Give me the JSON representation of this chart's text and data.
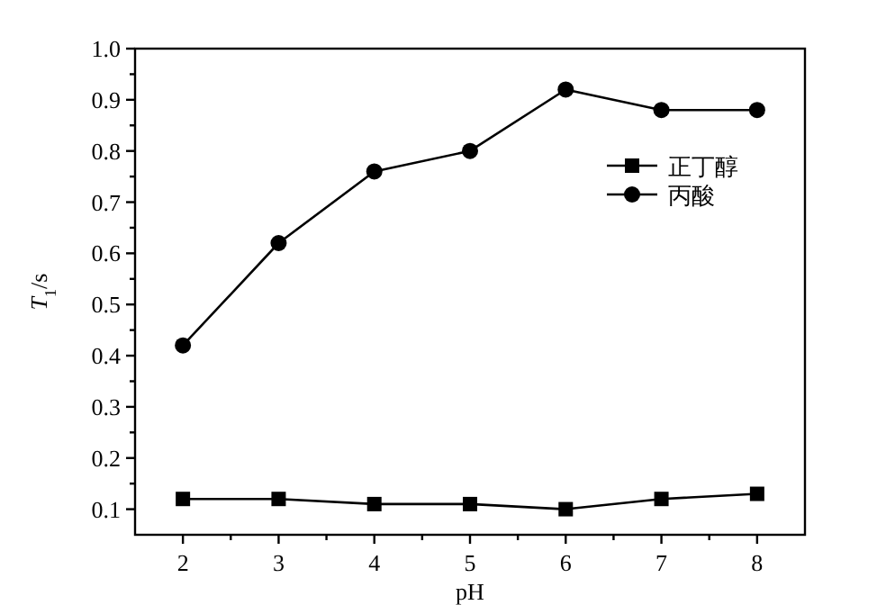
{
  "chart_data": {
    "type": "line",
    "xlabel": "pH",
    "ylabel": "*T*$_{1}$/s",
    "x": [
      2,
      3,
      4,
      5,
      6,
      7,
      8
    ],
    "series": [
      {
        "name": "正丁醇",
        "color": "#000000",
        "marker": "square",
        "values": [
          0.12,
          0.12,
          0.11,
          0.11,
          0.1,
          0.12,
          0.13
        ]
      },
      {
        "name": "丙酸",
        "color": "#000000",
        "marker": "circle",
        "values": [
          0.42,
          0.62,
          0.76,
          0.8,
          0.92,
          0.88,
          0.88
        ]
      }
    ],
    "xlim": [
      1.5,
      8.5
    ],
    "xticks": [
      2,
      3,
      4,
      5,
      6,
      7,
      8
    ],
    "ylim": [
      0.05,
      1.0
    ],
    "yticks": [
      {
        "value": 0.1,
        "label": "0.1"
      },
      {
        "value": 0.2,
        "label": "0.2"
      },
      {
        "value": 0.3,
        "label": "0.3"
      },
      {
        "value": 0.4,
        "label": "0.4"
      },
      {
        "value": 0.5,
        "label": "0.5"
      },
      {
        "value": 0.6,
        "label": "0.6"
      },
      {
        "value": 0.7,
        "label": "0.7"
      },
      {
        "value": 0.8,
        "label": "0.8"
      },
      {
        "value": 0.9,
        "label": "0.9"
      },
      {
        "value": 1.0,
        "label": "1.0"
      }
    ],
    "legend": "right",
    "line_style": "solid"
  }
}
